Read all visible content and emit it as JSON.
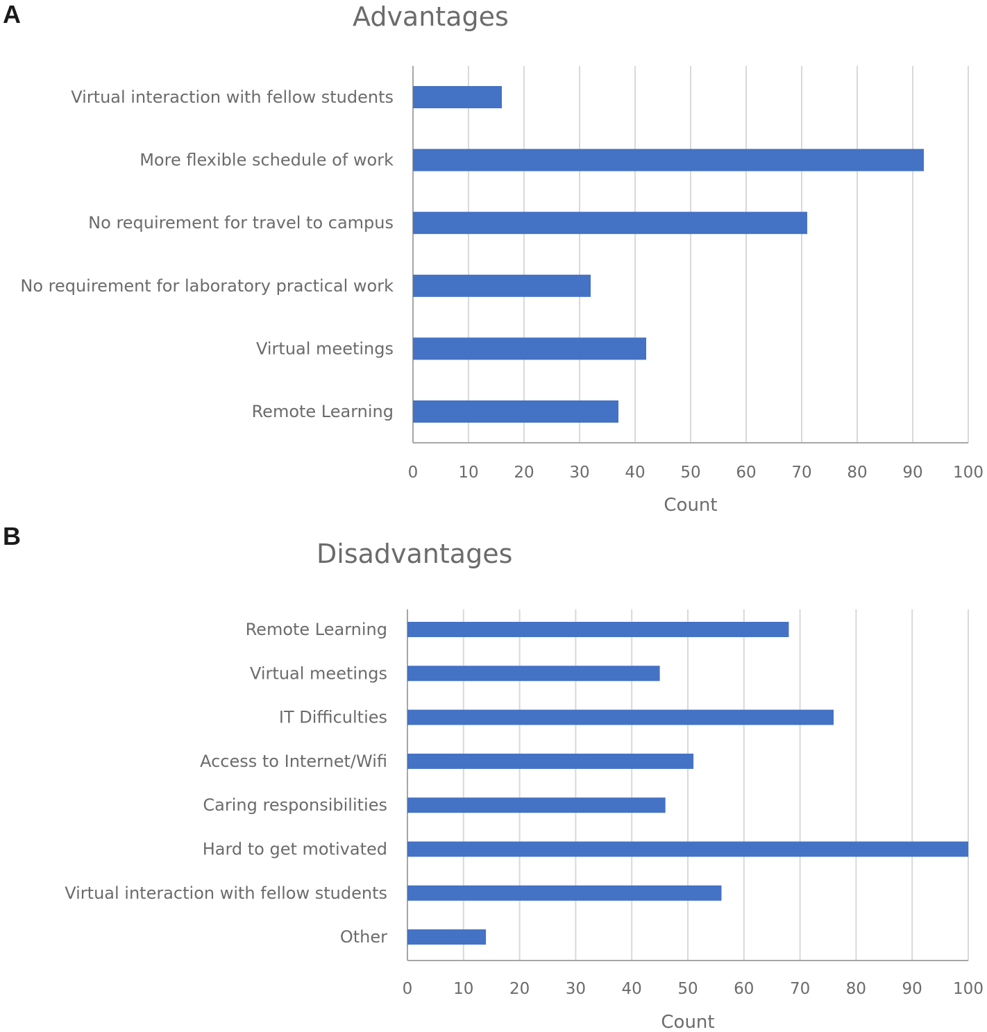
{
  "panel_a": {
    "letter": "A"
  },
  "panel_b": {
    "letter": "B"
  },
  "chart_data": [
    {
      "type": "bar",
      "orientation": "horizontal",
      "title": "Advantages",
      "categories": [
        "Virtual interaction with fellow students",
        "More flexible schedule of work",
        "No requirement for travel to campus",
        "No requirement for laboratory practical work",
        "Virtual meetings",
        "Remote Learning"
      ],
      "values": [
        16,
        92,
        71,
        32,
        42,
        37
      ],
      "xlabel": "Count",
      "ylabel": "",
      "xlim": [
        0,
        100
      ],
      "ticks": [
        "0",
        "10",
        "20",
        "30",
        "40",
        "50",
        "60",
        "70",
        "80",
        "90",
        "100"
      ],
      "grid": true,
      "color": "#4472c4"
    },
    {
      "type": "bar",
      "orientation": "horizontal",
      "title": "Disadvantages",
      "categories": [
        "Remote Learning",
        "Virtual meetings",
        "IT Difficulties",
        "Access to Internet/Wifi",
        "Caring responsibilities",
        "Hard to get motivated",
        "Virtual interaction with fellow students",
        "Other"
      ],
      "values": [
        68,
        45,
        76,
        51,
        46,
        100,
        56,
        14
      ],
      "xlabel": "Count",
      "ylabel": "",
      "xlim": [
        0,
        100
      ],
      "ticks": [
        "0",
        "10",
        "20",
        "30",
        "40",
        "50",
        "60",
        "70",
        "80",
        "90",
        "100"
      ],
      "grid": true,
      "color": "#4472c4"
    }
  ]
}
